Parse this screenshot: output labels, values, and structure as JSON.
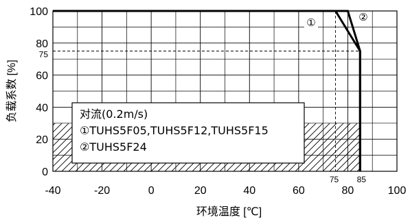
{
  "chart_data": {
    "type": "line",
    "xlabel": "环境温度 [℃]",
    "ylabel": "负载系数 [%]",
    "xlim": [
      -40,
      100
    ],
    "ylim": [
      0,
      100
    ],
    "x_ticks": [
      -40,
      -20,
      0,
      20,
      40,
      60,
      80,
      100
    ],
    "y_ticks": [
      0,
      20,
      40,
      60,
      80,
      100
    ],
    "x_minor_labels": [
      75,
      85
    ],
    "y_minor_labels": [
      75
    ],
    "grid": true,
    "reference_lines": [
      {
        "axis": "x",
        "value": 75,
        "style": "dashed"
      },
      {
        "axis": "y",
        "value": 75,
        "style": "dashed"
      }
    ],
    "hatched_region": {
      "y_from": 0,
      "y_to": 30,
      "x_from": -40,
      "x_to": 85
    },
    "series": [
      {
        "name": "①",
        "x": [
          -40,
          75,
          85,
          85
        ],
        "y": [
          100,
          100,
          75,
          0
        ]
      },
      {
        "name": "②",
        "x": [
          -40,
          80,
          85,
          85
        ],
        "y": [
          100,
          100,
          75,
          0
        ]
      }
    ],
    "legend": {
      "placement": "bottom-left",
      "lines": [
        "对流(0.2m/s)",
        "①TUHS5F05,TUHS5F12,TUHS5F15",
        "②TUHS5F24"
      ]
    }
  },
  "style": {
    "line_color": "#000000",
    "grid_color": "#000000",
    "background": "#ffffff"
  }
}
